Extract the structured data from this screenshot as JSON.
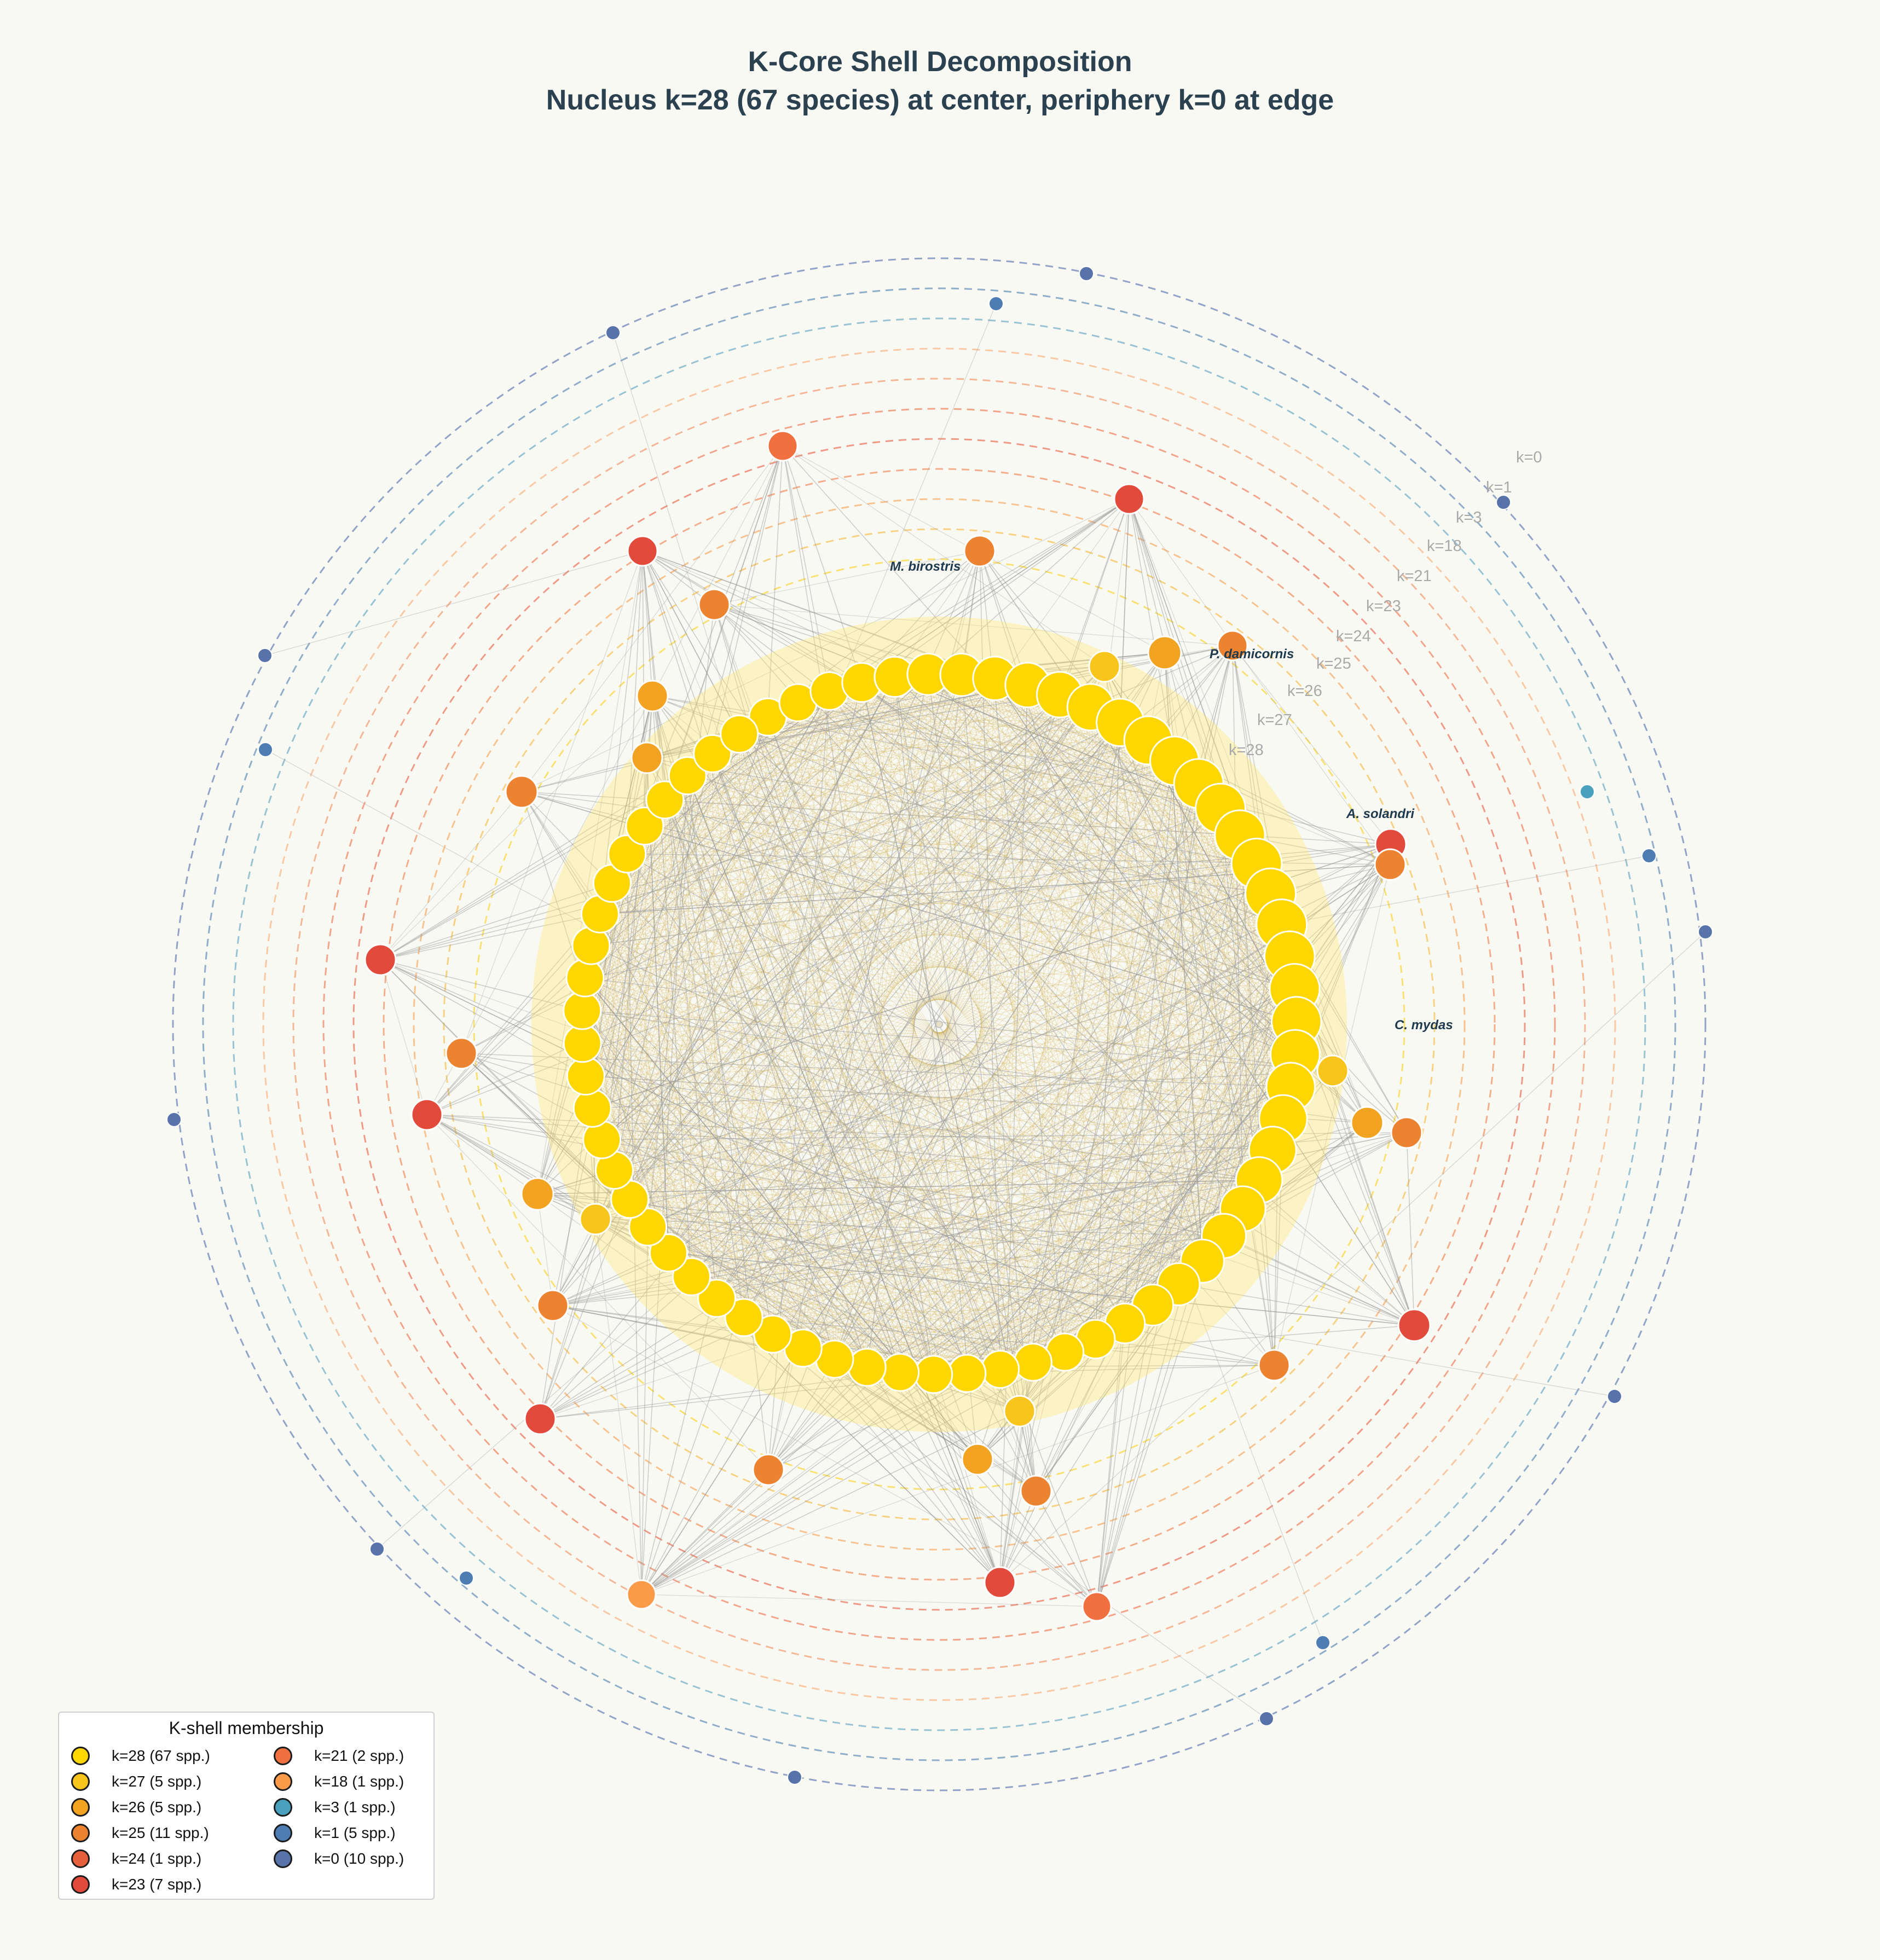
{
  "title": {
    "line1": "K-Core Shell Decomposition",
    "line2": "Nucleus k=28 (67 species) at center, periphery k=0 at edge"
  },
  "ring_labels": [
    "k=0",
    "k=1",
    "k=3",
    "k=18",
    "k=21",
    "k=23",
    "k=24",
    "k=25",
    "k=26",
    "k=27",
    "k=28"
  ],
  "species_labels": [
    "M. birostris",
    "P. damicornis",
    "A. solandri",
    "C. mydas"
  ],
  "shell_colors": {
    "k28": "#ffd700",
    "k27": "#f7c51c",
    "k26": "#f2a322",
    "k25": "#ec8330",
    "k24": "#e5603b",
    "k23": "#e24a3b",
    "k21": "#f07040",
    "k18": "#fb9a48",
    "k3": "#4aa1bd",
    "k1": "#4d7db3",
    "k0": "#5773aa",
    "edge": "#9a9a9a",
    "core_edge": "#c8a63a"
  },
  "legend": {
    "title": "K-shell membership",
    "items": [
      {
        "label": "k=28 (67 spp.)",
        "color": "#ffd700"
      },
      {
        "label": "k=27 (5 spp.)",
        "color": "#f7c51c"
      },
      {
        "label": "k=26 (5 spp.)",
        "color": "#f2a322"
      },
      {
        "label": "k=25 (11 spp.)",
        "color": "#ec8330"
      },
      {
        "label": "k=24 (1 spp.)",
        "color": "#e5603b"
      },
      {
        "label": "k=23 (7 spp.)",
        "color": "#e24a3b"
      },
      {
        "label": "k=21 (2 spp.)",
        "color": "#f07040"
      },
      {
        "label": "k=18 (1 spp.)",
        "color": "#fb9a48"
      },
      {
        "label": "k=3 (1 spp.)",
        "color": "#4aa1bd"
      },
      {
        "label": "k=1 (5 spp.)",
        "color": "#4d7db3"
      },
      {
        "label": "k=0 (10 spp.)",
        "color": "#5773aa"
      }
    ]
  }
}
